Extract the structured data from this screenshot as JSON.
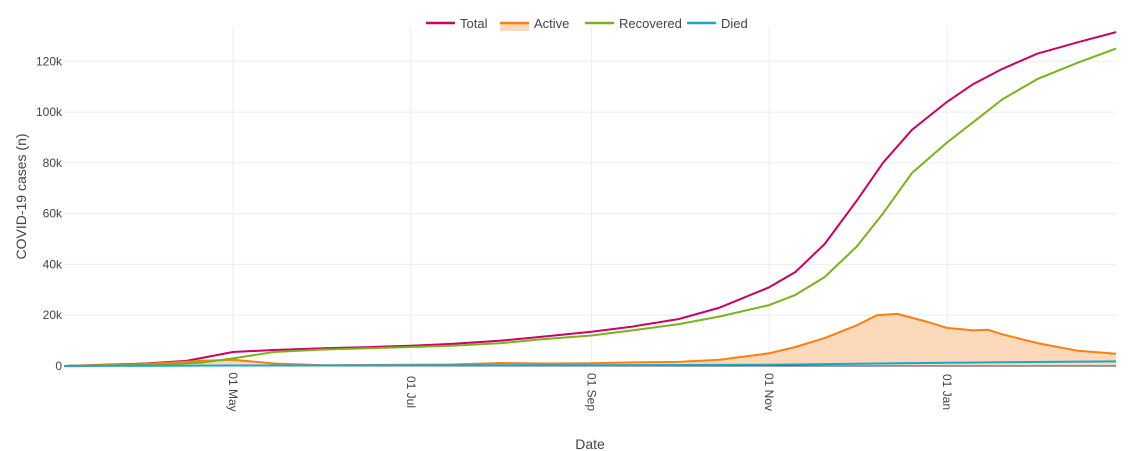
{
  "chart_data": {
    "type": "line",
    "xlabel": "Date",
    "ylabel": "COVID-19 cases (n)",
    "x_ticks": [
      {
        "date": "2020-05-01",
        "label": "01 May"
      },
      {
        "date": "2020-07-01",
        "label": "01 Jul"
      },
      {
        "date": "2020-09-01",
        "label": "01 Sep"
      },
      {
        "date": "2020-11-01",
        "label": "01 Nov"
      },
      {
        "date": "2021-01-01",
        "label": "01 Jan"
      }
    ],
    "y_ticks": [
      {
        "value": 0,
        "label": "0"
      },
      {
        "value": 20000,
        "label": "20k"
      },
      {
        "value": 40000,
        "label": "40k"
      },
      {
        "value": 60000,
        "label": "60k"
      },
      {
        "value": 80000,
        "label": "80k"
      },
      {
        "value": 100000,
        "label": "100k"
      },
      {
        "value": 120000,
        "label": "120k"
      }
    ],
    "xlim": [
      "2020-03-04",
      "2021-02-28"
    ],
    "ylim": [
      -800,
      133500
    ],
    "grid": true,
    "legend_position": "top-center",
    "series": [
      {
        "name": "Total",
        "color": "#cc0066",
        "fill": false,
        "points": [
          [
            "2020-03-04",
            0
          ],
          [
            "2020-04-01",
            1000
          ],
          [
            "2020-04-15",
            2000
          ],
          [
            "2020-05-01",
            5500
          ],
          [
            "2020-05-15",
            6300
          ],
          [
            "2020-06-01",
            7000
          ],
          [
            "2020-06-15",
            7400
          ],
          [
            "2020-07-01",
            8000
          ],
          [
            "2020-07-15",
            8700
          ],
          [
            "2020-08-01",
            10000
          ],
          [
            "2020-08-15",
            11500
          ],
          [
            "2020-09-01",
            13500
          ],
          [
            "2020-09-15",
            15500
          ],
          [
            "2020-10-01",
            18500
          ],
          [
            "2020-10-15",
            23000
          ],
          [
            "2020-11-01",
            31000
          ],
          [
            "2020-11-10",
            37000
          ],
          [
            "2020-11-20",
            48000
          ],
          [
            "2020-12-01",
            65000
          ],
          [
            "2020-12-10",
            80000
          ],
          [
            "2020-12-20",
            93000
          ],
          [
            "2021-01-01",
            104000
          ],
          [
            "2021-01-10",
            111000
          ],
          [
            "2021-01-20",
            117000
          ],
          [
            "2021-02-01",
            123000
          ],
          [
            "2021-02-15",
            127500
          ],
          [
            "2021-02-28",
            131500
          ]
        ]
      },
      {
        "name": "Active",
        "color": "#ff7f0e",
        "fill": true,
        "fill_color": "#fdd9bc",
        "points": [
          [
            "2020-03-04",
            0
          ],
          [
            "2020-04-01",
            800
          ],
          [
            "2020-04-20",
            2000
          ],
          [
            "2020-05-01",
            2500
          ],
          [
            "2020-05-15",
            1000
          ],
          [
            "2020-06-01",
            300
          ],
          [
            "2020-07-01",
            500
          ],
          [
            "2020-07-15",
            600
          ],
          [
            "2020-08-01",
            1200
          ],
          [
            "2020-08-15",
            1000
          ],
          [
            "2020-09-01",
            1100
          ],
          [
            "2020-09-15",
            1400
          ],
          [
            "2020-10-01",
            1600
          ],
          [
            "2020-10-15",
            2500
          ],
          [
            "2020-11-01",
            5000
          ],
          [
            "2020-11-10",
            7500
          ],
          [
            "2020-11-20",
            11000
          ],
          [
            "2020-12-01",
            16000
          ],
          [
            "2020-12-08",
            20000
          ],
          [
            "2020-12-15",
            20500
          ],
          [
            "2020-12-25",
            17500
          ],
          [
            "2021-01-01",
            15000
          ],
          [
            "2021-01-10",
            14000
          ],
          [
            "2021-01-15",
            14300
          ],
          [
            "2021-01-20",
            12500
          ],
          [
            "2021-02-01",
            9000
          ],
          [
            "2021-02-15",
            6000
          ],
          [
            "2021-02-28",
            4800
          ]
        ]
      },
      {
        "name": "Recovered",
        "color": "#7ab317",
        "fill": false,
        "points": [
          [
            "2020-03-04",
            0
          ],
          [
            "2020-04-01",
            400
          ],
          [
            "2020-04-20",
            1300
          ],
          [
            "2020-05-01",
            3000
          ],
          [
            "2020-05-15",
            5500
          ],
          [
            "2020-06-01",
            6500
          ],
          [
            "2020-07-01",
            7500
          ],
          [
            "2020-07-15",
            8000
          ],
          [
            "2020-08-01",
            9000
          ],
          [
            "2020-08-15",
            10500
          ],
          [
            "2020-09-01",
            12000
          ],
          [
            "2020-09-15",
            14000
          ],
          [
            "2020-10-01",
            16500
          ],
          [
            "2020-10-15",
            19500
          ],
          [
            "2020-11-01",
            24000
          ],
          [
            "2020-11-10",
            28000
          ],
          [
            "2020-11-20",
            35000
          ],
          [
            "2020-12-01",
            47000
          ],
          [
            "2020-12-10",
            60000
          ],
          [
            "2020-12-20",
            76000
          ],
          [
            "2021-01-01",
            88000
          ],
          [
            "2021-01-10",
            96000
          ],
          [
            "2021-01-20",
            105000
          ],
          [
            "2021-02-01",
            113000
          ],
          [
            "2021-02-15",
            119500
          ],
          [
            "2021-02-28",
            125000
          ]
        ]
      },
      {
        "name": "Died",
        "color": "#17a7d1",
        "fill": false,
        "points": [
          [
            "2020-03-04",
            0
          ],
          [
            "2020-05-01",
            200
          ],
          [
            "2020-07-01",
            250
          ],
          [
            "2020-09-01",
            300
          ],
          [
            "2020-11-01",
            500
          ],
          [
            "2020-12-01",
            900
          ],
          [
            "2021-01-01",
            1300
          ],
          [
            "2021-02-28",
            1800
          ]
        ]
      }
    ]
  }
}
